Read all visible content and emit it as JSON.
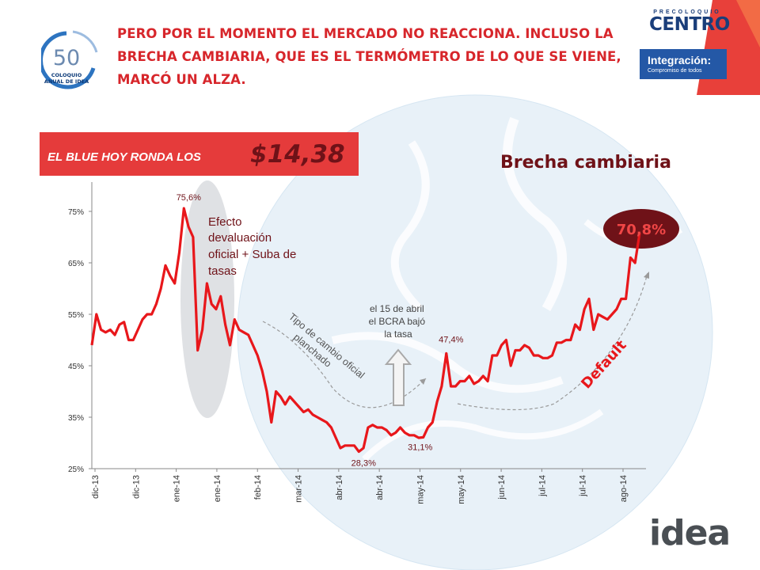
{
  "headline": "PERO POR EL MOMENTO EL MERCADO NO REACCIONA. INCLUSO LA BRECHA CAMBIARIA, QUE ES EL TERMÓMETRO DE LO QUE SE VIENE, MARCÓ UN ALZA.",
  "logo_left": {
    "number": "50",
    "text": "COLOQUIO ANUAL DE IDEA"
  },
  "logo_right": {
    "pre": "PRECOLOQUIO",
    "name": "CENTRO",
    "tagline": "Integración:",
    "sub": "Compromiso de todos"
  },
  "blue_box": {
    "label": "EL BLUE HOY RONDA LOS",
    "value": "$14,38"
  },
  "chart_title": "Brecha cambiaria",
  "brand": "idea",
  "colors": {
    "series": "#e8171b",
    "title_dark": "#6f1218",
    "headline": "#d7262b",
    "box": "#e53b3b"
  },
  "annotations": {
    "efecto": [
      "Efecto",
      "devaluación",
      "oficial + Suba de",
      "tasas"
    ],
    "tipo": [
      "Tipo de cambio oficial",
      "planchado"
    ],
    "bcra": [
      "el 15 de abril",
      "el BCRA bajó",
      "la tasa"
    ],
    "default": "Default",
    "current_badge": "70,8%"
  },
  "chart_data": {
    "type": "line",
    "ylim": [
      25,
      80
    ],
    "yticks": [
      25,
      35,
      45,
      55,
      65,
      75
    ],
    "ytick_labels": [
      "25%",
      "35%",
      "45%",
      "55%",
      "65%",
      "75%"
    ],
    "xtick_labels": [
      "dic-13",
      "dic-13",
      "ene-14",
      "ene-14",
      "feb-14",
      "mar-14",
      "abr-14",
      "abr-14",
      "may-14",
      "may-14",
      "jun-14",
      "jul-14",
      "jul-14",
      "ago-14"
    ],
    "data_labels": [
      {
        "index": 20,
        "text": "75,6%"
      },
      {
        "index": 58,
        "text": "28,3%"
      },
      {
        "index": 72,
        "text": "31,1%"
      },
      {
        "index": 77,
        "text": "47,4%"
      }
    ],
    "series": [
      {
        "values": [
          49,
          55,
          52,
          51.5,
          52,
          51,
          53,
          53.5,
          50,
          50,
          52,
          54,
          55,
          55,
          57,
          60,
          64.5,
          62.5,
          61,
          67,
          75.6,
          72,
          70,
          48,
          52,
          61,
          57,
          56,
          58.5,
          53,
          49,
          54,
          52,
          51.5,
          51,
          49,
          47,
          44,
          40,
          34,
          40,
          39,
          37.5,
          39,
          38,
          37,
          36,
          36.5,
          35.5,
          35,
          34.5,
          34,
          33,
          31,
          29,
          29.5,
          29.5,
          29.5,
          28.3,
          29,
          33,
          33.5,
          33,
          33,
          32.5,
          31.5,
          32,
          33,
          32,
          31.5,
          31.5,
          31,
          31.1,
          33,
          34,
          38,
          41,
          47.4,
          41,
          41,
          42,
          42,
          43,
          41.5,
          42,
          43,
          42,
          47,
          47,
          49,
          50,
          45,
          48,
          48,
          49,
          48.5,
          47,
          47,
          46.5,
          46.5,
          47,
          49.5,
          49.5,
          50,
          50,
          53,
          52,
          56,
          58,
          52,
          55,
          54.5,
          54,
          55,
          56,
          58,
          58,
          66,
          65,
          70.8
        ]
      }
    ]
  }
}
